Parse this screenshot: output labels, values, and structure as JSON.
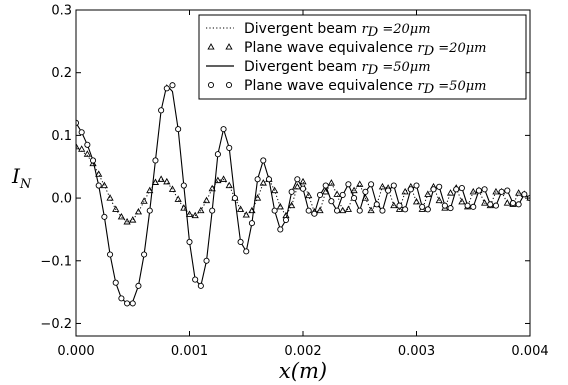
{
  "chart_data": {
    "type": "line",
    "xlabel": "x(m)",
    "ylabel": "I_N",
    "xlim": [
      0.0,
      0.004
    ],
    "ylim": [
      -0.22,
      0.3
    ],
    "x_ticks": [
      "0.000",
      "0.001",
      "0.002",
      "0.003",
      "0.004"
    ],
    "y_ticks": [
      "−0.2",
      "−0.1",
      "0.0",
      "0.1",
      "0.2",
      "0.3"
    ],
    "legend_position": "top-right",
    "legend": [
      {
        "text": "Divergent beam ",
        "math_var": "r",
        "math_sub": "D",
        "math_eq": " =20",
        "math_unit": "μm",
        "style": "dotted"
      },
      {
        "text": "Plane wave equivalence ",
        "math_var": "r",
        "math_sub": "D",
        "math_eq": " =20",
        "math_unit": "μm",
        "style": "triangle"
      },
      {
        "text": "Divergent beam ",
        "math_var": "r",
        "math_sub": "D",
        "math_eq": " =50",
        "math_unit": "μm",
        "style": "solid"
      },
      {
        "text": "Plane wave equivalence ",
        "math_var": "r",
        "math_sub": "D",
        "math_eq": " =50",
        "math_unit": "μm",
        "style": "circle"
      }
    ],
    "series": [
      {
        "name": "Divergent beam rD=20μm (dotted)",
        "x": [
          0.0,
          5e-05,
          0.0001,
          0.00015,
          0.0002,
          0.00025,
          0.0003,
          0.00035,
          0.0004,
          0.00045,
          0.0005,
          0.00055,
          0.0006,
          0.00065,
          0.0007,
          0.00075,
          0.0008,
          0.00085,
          0.0009,
          0.00095,
          0.001,
          0.00105,
          0.0011,
          0.00115,
          0.0012,
          0.00125,
          0.0013,
          0.00135,
          0.0014,
          0.00145,
          0.0015,
          0.00155,
          0.0016,
          0.00165,
          0.0017,
          0.00175,
          0.0018,
          0.00185,
          0.0019,
          0.00195,
          0.002,
          0.00205,
          0.0021,
          0.00215,
          0.0022,
          0.00225,
          0.0023,
          0.00235,
          0.0024,
          0.00245,
          0.0025,
          0.00255,
          0.0026,
          0.00265,
          0.0027,
          0.00275,
          0.0028,
          0.00285,
          0.0029,
          0.00295,
          0.003,
          0.00305,
          0.0031,
          0.00315,
          0.0032,
          0.00325,
          0.0033,
          0.00335,
          0.0034,
          0.00345,
          0.0035,
          0.00355,
          0.0036,
          0.00365,
          0.0037,
          0.00375,
          0.0038,
          0.00385,
          0.0039,
          0.00395,
          0.004
        ],
        "values": [
          0.082,
          0.075,
          0.068,
          0.055,
          0.038,
          0.02,
          0.0,
          -0.018,
          -0.03,
          -0.038,
          -0.035,
          -0.022,
          -0.005,
          0.012,
          0.025,
          0.03,
          0.026,
          0.014,
          -0.002,
          -0.016,
          -0.026,
          -0.028,
          -0.02,
          -0.004,
          0.015,
          0.028,
          0.03,
          0.02,
          0.0,
          -0.018,
          -0.027,
          -0.02,
          0.0,
          0.024,
          0.03,
          0.012,
          -0.014,
          -0.028,
          -0.012,
          0.018,
          0.026,
          0.004,
          -0.022,
          -0.02,
          0.01,
          0.024,
          0.006,
          -0.02,
          -0.018,
          0.012,
          0.022,
          0.0,
          -0.02,
          -0.01,
          0.018,
          0.016,
          -0.012,
          -0.018,
          0.01,
          0.018,
          -0.006,
          -0.018,
          0.006,
          0.018,
          -0.004,
          -0.016,
          0.008,
          0.016,
          -0.006,
          -0.014,
          0.01,
          0.012,
          -0.008,
          -0.012,
          0.01,
          0.01,
          -0.008,
          -0.01,
          0.008,
          0.006,
          0.0
        ]
      },
      {
        "name": "Plane wave equivalence rD=20μm (triangles)",
        "x": [
          0.0,
          5e-05,
          0.0001,
          0.00015,
          0.0002,
          0.00025,
          0.0003,
          0.00035,
          0.0004,
          0.00045,
          0.0005,
          0.00055,
          0.0006,
          0.00065,
          0.0007,
          0.00075,
          0.0008,
          0.00085,
          0.0009,
          0.00095,
          0.001,
          0.00105,
          0.0011,
          0.00115,
          0.0012,
          0.00125,
          0.0013,
          0.00135,
          0.0014,
          0.00145,
          0.0015,
          0.00155,
          0.0016,
          0.00165,
          0.0017,
          0.00175,
          0.0018,
          0.00185,
          0.0019,
          0.00195,
          0.002,
          0.00205,
          0.0021,
          0.00215,
          0.0022,
          0.00225,
          0.0023,
          0.00235,
          0.0024,
          0.00245,
          0.0025,
          0.00255,
          0.0026,
          0.00265,
          0.0027,
          0.00275,
          0.0028,
          0.00285,
          0.0029,
          0.00295,
          0.003,
          0.00305,
          0.0031,
          0.00315,
          0.0032,
          0.00325,
          0.0033,
          0.00335,
          0.0034,
          0.00345,
          0.0035,
          0.00355,
          0.0036,
          0.00365,
          0.0037,
          0.00375,
          0.0038,
          0.00385,
          0.0039,
          0.00395,
          0.004
        ],
        "values": [
          0.082,
          0.078,
          0.07,
          0.055,
          0.038,
          0.02,
          0.0,
          -0.018,
          -0.03,
          -0.038,
          -0.035,
          -0.022,
          -0.005,
          0.012,
          0.025,
          0.03,
          0.026,
          0.014,
          -0.002,
          -0.016,
          -0.026,
          -0.028,
          -0.02,
          -0.004,
          0.015,
          0.028,
          0.03,
          0.02,
          0.0,
          -0.018,
          -0.027,
          -0.02,
          0.0,
          0.024,
          0.03,
          0.012,
          -0.014,
          -0.028,
          -0.012,
          0.018,
          0.026,
          0.004,
          -0.022,
          -0.02,
          0.01,
          0.024,
          0.006,
          -0.02,
          -0.018,
          0.012,
          0.022,
          0.0,
          -0.02,
          -0.01,
          0.018,
          0.016,
          -0.012,
          -0.018,
          0.01,
          0.018,
          -0.006,
          -0.018,
          0.006,
          0.018,
          -0.004,
          -0.016,
          0.008,
          0.016,
          -0.006,
          -0.014,
          0.01,
          0.012,
          -0.008,
          -0.012,
          0.01,
          0.01,
          -0.008,
          -0.01,
          0.008,
          0.006,
          0.0
        ]
      },
      {
        "name": "Divergent beam rD=50μm (solid)",
        "x": [
          0.0,
          5e-05,
          0.0001,
          0.00015,
          0.0002,
          0.00025,
          0.0003,
          0.00035,
          0.0004,
          0.00045,
          0.0005,
          0.00055,
          0.0006,
          0.00065,
          0.0007,
          0.00075,
          0.0008,
          0.00085,
          0.0009,
          0.00095,
          0.001,
          0.00105,
          0.0011,
          0.00115,
          0.0012,
          0.00125,
          0.0013,
          0.00135,
          0.0014,
          0.00145,
          0.0015,
          0.00155,
          0.0016,
          0.00165,
          0.0017,
          0.00175,
          0.0018,
          0.00185,
          0.0019,
          0.00195,
          0.002,
          0.00205,
          0.0021,
          0.00215,
          0.0022,
          0.00225,
          0.0023,
          0.00235,
          0.0024,
          0.00245,
          0.0025,
          0.00255,
          0.0026,
          0.00265,
          0.0027,
          0.00275,
          0.0028,
          0.00285,
          0.0029,
          0.00295,
          0.003,
          0.00305,
          0.0031,
          0.00315,
          0.0032,
          0.00325,
          0.0033,
          0.00335,
          0.0034,
          0.00345,
          0.0035,
          0.00355,
          0.0036,
          0.00365,
          0.0037,
          0.00375,
          0.0038,
          0.00385,
          0.0039,
          0.00395,
          0.004
        ],
        "values": [
          0.12,
          0.105,
          0.085,
          0.06,
          0.02,
          -0.03,
          -0.09,
          -0.135,
          -0.16,
          -0.168,
          -0.165,
          -0.14,
          -0.09,
          -0.02,
          0.06,
          0.14,
          0.18,
          0.17,
          0.11,
          0.02,
          -0.07,
          -0.13,
          -0.14,
          -0.1,
          -0.02,
          0.07,
          0.11,
          0.08,
          0.0,
          -0.07,
          -0.085,
          -0.04,
          0.03,
          0.06,
          0.03,
          -0.02,
          -0.05,
          -0.035,
          0.01,
          0.03,
          0.015,
          -0.02,
          -0.025,
          0.005,
          0.02,
          -0.005,
          -0.02,
          0.005,
          0.022,
          0.0,
          -0.02,
          0.01,
          0.022,
          -0.01,
          -0.02,
          0.012,
          0.02,
          -0.012,
          -0.018,
          0.014,
          0.02,
          -0.014,
          -0.018,
          0.014,
          0.018,
          -0.012,
          -0.016,
          0.014,
          0.016,
          -0.012,
          -0.014,
          0.012,
          0.014,
          -0.01,
          -0.012,
          0.01,
          0.012,
          -0.008,
          -0.01,
          0.006,
          0.0
        ]
      },
      {
        "name": "Plane wave equivalence rD=50μm (circles)",
        "x": [
          0.0,
          5e-05,
          0.0001,
          0.00015,
          0.0002,
          0.00025,
          0.0003,
          0.00035,
          0.0004,
          0.00045,
          0.0005,
          0.00055,
          0.0006,
          0.00065,
          0.0007,
          0.00075,
          0.0008,
          0.00085,
          0.0009,
          0.00095,
          0.001,
          0.00105,
          0.0011,
          0.00115,
          0.0012,
          0.00125,
          0.0013,
          0.00135,
          0.0014,
          0.00145,
          0.0015,
          0.00155,
          0.0016,
          0.00165,
          0.0017,
          0.00175,
          0.0018,
          0.00185,
          0.0019,
          0.00195,
          0.002,
          0.00205,
          0.0021,
          0.00215,
          0.0022,
          0.00225,
          0.0023,
          0.00235,
          0.0024,
          0.00245,
          0.0025,
          0.00255,
          0.0026,
          0.00265,
          0.0027,
          0.00275,
          0.0028,
          0.00285,
          0.0029,
          0.00295,
          0.003,
          0.00305,
          0.0031,
          0.00315,
          0.0032,
          0.00325,
          0.0033,
          0.00335,
          0.0034,
          0.00345,
          0.0035,
          0.00355,
          0.0036,
          0.00365,
          0.0037,
          0.00375,
          0.0038,
          0.00385,
          0.0039,
          0.00395,
          0.004
        ],
        "values": [
          0.12,
          0.105,
          0.085,
          0.06,
          0.02,
          -0.03,
          -0.09,
          -0.135,
          -0.16,
          -0.168,
          -0.168,
          -0.14,
          -0.09,
          -0.02,
          0.06,
          0.14,
          0.175,
          0.18,
          0.11,
          0.02,
          -0.07,
          -0.13,
          -0.14,
          -0.1,
          -0.02,
          0.07,
          0.11,
          0.08,
          0.0,
          -0.07,
          -0.085,
          -0.04,
          0.03,
          0.06,
          0.03,
          -0.02,
          -0.05,
          -0.035,
          0.01,
          0.03,
          0.015,
          -0.02,
          -0.025,
          0.005,
          0.02,
          -0.005,
          -0.02,
          0.005,
          0.022,
          0.0,
          -0.02,
          0.01,
          0.022,
          -0.01,
          -0.02,
          0.012,
          0.02,
          -0.012,
          -0.018,
          0.014,
          0.02,
          -0.014,
          -0.018,
          0.014,
          0.018,
          -0.012,
          -0.016,
          0.014,
          0.016,
          -0.012,
          -0.014,
          0.012,
          0.014,
          -0.01,
          -0.012,
          0.01,
          0.012,
          -0.008,
          -0.01,
          0.006,
          0.0
        ]
      }
    ]
  }
}
